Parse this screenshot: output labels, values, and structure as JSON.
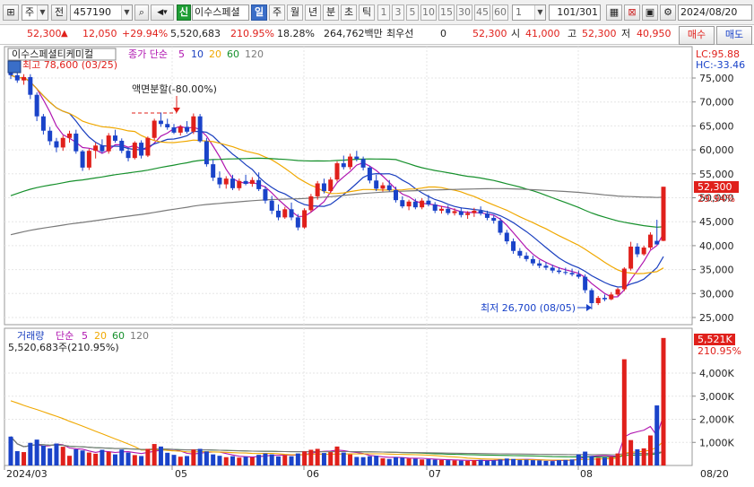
{
  "toolbar": {
    "market_label": "주",
    "prev_label": "전",
    "code_value": "457190",
    "new_badge": "신",
    "stock_name": "이수스페셜",
    "periods": [
      "일",
      "주",
      "월",
      "년",
      "분",
      "초",
      "틱"
    ],
    "active_period": "일",
    "intervals": [
      "1",
      "3",
      "5",
      "10",
      "15",
      "30",
      "45",
      "60"
    ],
    "interval_value": "1",
    "counter": "101",
    "counter_total": "/301",
    "date_value": "2024/08/20"
  },
  "quote": {
    "price": "52,300",
    "change": "12,050",
    "change_pct": "+29.94%",
    "volume": "5,520,683",
    "volume_ratio": "210.95%",
    "turnover": "18.28%",
    "amount": "264,762백만",
    "priority_label": "최우선",
    "priority_value": "0",
    "current": "52,300",
    "open_label": "시",
    "open": "41,000",
    "high_label": "고",
    "high": "52,300",
    "low_label": "저",
    "low": "40,950",
    "buy_label": "매수",
    "sell_label": "매도"
  },
  "price_panel": {
    "title": "이수스페셜티케미컬",
    "ma_label": "종가 단순",
    "ma_periods": [
      "5",
      "10",
      "20",
      "60",
      "120"
    ],
    "ma_colors": [
      "#b015b0",
      "#1a3fbf",
      "#f0a800",
      "#16902c",
      "#7a7a7a"
    ],
    "high_marker": "최고 78,600 (03/25)",
    "low_marker": "최저 26,700 (08/05)",
    "split_marker": "액면분할(-80.00%)",
    "lc": "LC:95.88",
    "hc": "HC:-33.46",
    "last_price_tag": "52,300",
    "last_pct_tag": "29.94%",
    "y_ticks": [
      "75,000",
      "70,000",
      "65,000",
      "60,000",
      "55,000",
      "50,000",
      "45,000",
      "40,000",
      "35,000",
      "30,000",
      "25,000"
    ]
  },
  "volume_panel": {
    "title": "거래량",
    "ma_label": "단순",
    "ma_periods": [
      "5",
      "20",
      "60",
      "120"
    ],
    "volume_text": "5,520,683주(210.95%)",
    "last_vol_tag": "5,521K",
    "last_vol_pct": "210.95%",
    "y_ticks": [
      "4,000K",
      "3,000K",
      "2,000K",
      "1,000K"
    ]
  },
  "x_axis": {
    "labels": [
      "2024/03",
      "05",
      "06",
      "07",
      "08"
    ],
    "right_label": "08/20"
  },
  "chart_data": {
    "type": "candlestick",
    "price_range": [
      24000,
      79000
    ],
    "volume_range": [
      0,
      5600000
    ],
    "y_ticks": [
      75000,
      70000,
      65000,
      60000,
      55000,
      50000,
      45000,
      40000,
      35000,
      30000,
      25000
    ],
    "volume_ticks": [
      4000000,
      3000000,
      2000000,
      1000000
    ],
    "ohlc": [
      [
        76500,
        78600,
        74800,
        75600
      ],
      [
        75600,
        76400,
        74000,
        74500
      ],
      [
        74500,
        75800,
        73600,
        75200
      ],
      [
        75200,
        75800,
        70600,
        71500
      ],
      [
        71500,
        72000,
        66000,
        67000
      ],
      [
        67000,
        67500,
        63200,
        64000
      ],
      [
        64000,
        64800,
        61000,
        61800
      ],
      [
        61800,
        62500,
        59500,
        60500
      ],
      [
        60500,
        63000,
        59800,
        62500
      ],
      [
        62500,
        64000,
        61500,
        63400
      ],
      [
        63400,
        64200,
        59200,
        59700
      ],
      [
        59700,
        60000,
        55600,
        56300
      ],
      [
        56300,
        60200,
        55800,
        59800
      ],
      [
        59800,
        61500,
        58200,
        60900
      ],
      [
        60900,
        62200,
        59300,
        59700
      ],
      [
        59700,
        63500,
        59200,
        63000
      ],
      [
        63000,
        64200,
        61500,
        61900
      ],
      [
        61900,
        62400,
        59300,
        59800
      ],
      [
        59800,
        60500,
        57600,
        58300
      ],
      [
        58300,
        61800,
        58000,
        61500
      ],
      [
        61500,
        62000,
        58200,
        58800
      ],
      [
        58800,
        62800,
        58500,
        62500
      ],
      [
        62500,
        66500,
        62000,
        66100
      ],
      [
        66100,
        67800,
        64800,
        65400
      ],
      [
        65400,
        66500,
        64200,
        64700
      ],
      [
        64700,
        65400,
        63300,
        63600
      ],
      [
        63600,
        65200,
        63000,
        64800
      ],
      [
        64800,
        66000,
        63400,
        63800
      ],
      [
        63800,
        67600,
        63300,
        67000
      ],
      [
        67000,
        67500,
        61500,
        61800
      ],
      [
        61800,
        62500,
        56500,
        57000
      ],
      [
        57000,
        58000,
        53500,
        54200
      ],
      [
        54200,
        55500,
        52000,
        52800
      ],
      [
        52800,
        54500,
        51900,
        54000
      ],
      [
        54000,
        54800,
        51600,
        52000
      ],
      [
        52000,
        54000,
        51500,
        53500
      ],
      [
        53500,
        54800,
        52600,
        52900
      ],
      [
        52900,
        54300,
        52300,
        53700
      ],
      [
        53700,
        55300,
        51400,
        51800
      ],
      [
        51800,
        52400,
        48800,
        49400
      ],
      [
        49400,
        50400,
        46600,
        47300
      ],
      [
        47300,
        48600,
        45300,
        45900
      ],
      [
        45900,
        48100,
        45600,
        47600
      ],
      [
        47600,
        49000,
        45300,
        45900
      ],
      [
        45900,
        46600,
        43200,
        43800
      ],
      [
        43800,
        47800,
        43500,
        47400
      ],
      [
        47400,
        50800,
        47000,
        50300
      ],
      [
        50300,
        53500,
        49600,
        53000
      ],
      [
        53000,
        54000,
        50900,
        51400
      ],
      [
        51400,
        54300,
        51000,
        53800
      ],
      [
        53800,
        57600,
        53400,
        57200
      ],
      [
        57200,
        58800,
        55900,
        56400
      ],
      [
        56400,
        59200,
        55900,
        58600
      ],
      [
        58600,
        59800,
        57600,
        58100
      ],
      [
        58100,
        58600,
        55700,
        56300
      ],
      [
        56300,
        56700,
        53000,
        53600
      ],
      [
        53600,
        54800,
        51400,
        51900
      ],
      [
        51900,
        53200,
        51300,
        52600
      ],
      [
        52600,
        53700,
        51300,
        51600
      ],
      [
        51600,
        52300,
        49000,
        49500
      ],
      [
        49500,
        50300,
        47800,
        48200
      ],
      [
        48200,
        49600,
        47400,
        49200
      ],
      [
        49200,
        49800,
        47600,
        48000
      ],
      [
        48000,
        49900,
        47600,
        49400
      ],
      [
        49400,
        50600,
        48200,
        48600
      ],
      [
        48600,
        49100,
        46800,
        47300
      ],
      [
        47300,
        48300,
        46700,
        47700
      ],
      [
        47700,
        48400,
        46400,
        46800
      ],
      [
        46800,
        47800,
        46300,
        47200
      ],
      [
        47200,
        48000,
        45900,
        46400
      ],
      [
        46400,
        47200,
        45600,
        46800
      ],
      [
        46800,
        47900,
        46000,
        47300
      ],
      [
        47300,
        48200,
        46300,
        46700
      ],
      [
        46700,
        47300,
        45300,
        45800
      ],
      [
        45800,
        46400,
        44600,
        45200
      ],
      [
        45200,
        45800,
        42200,
        42700
      ],
      [
        42700,
        43300,
        40300,
        40900
      ],
      [
        40900,
        41500,
        38300,
        38900
      ],
      [
        38900,
        39500,
        37400,
        37900
      ],
      [
        37900,
        38600,
        36700,
        37200
      ],
      [
        37200,
        37900,
        35800,
        36300
      ],
      [
        36300,
        37000,
        35300,
        35800
      ],
      [
        35800,
        36600,
        34900,
        35400
      ],
      [
        35400,
        36000,
        34300,
        34800
      ],
      [
        34800,
        35500,
        34100,
        34500
      ],
      [
        34500,
        35400,
        33900,
        34300
      ],
      [
        34300,
        35200,
        33600,
        34000
      ],
      [
        34000,
        34800,
        33100,
        33500
      ],
      [
        33500,
        34000,
        30100,
        30700
      ],
      [
        30700,
        31100,
        26700,
        28000
      ],
      [
        28000,
        29500,
        27600,
        29100
      ],
      [
        29100,
        29800,
        28400,
        28800
      ],
      [
        28800,
        30300,
        28600,
        29800
      ],
      [
        29800,
        31200,
        29500,
        30900
      ],
      [
        30900,
        35500,
        30500,
        35200
      ],
      [
        35200,
        40800,
        34800,
        39800
      ],
      [
        39800,
        40500,
        37600,
        38200
      ],
      [
        38200,
        40000,
        37900,
        39600
      ],
      [
        39600,
        42800,
        39200,
        42300
      ],
      [
        41000,
        45400,
        40600,
        40250
      ],
      [
        41000,
        52300,
        40950,
        52300
      ]
    ],
    "volume": [
      1250000,
      620000,
      580000,
      980000,
      1120000,
      860000,
      740000,
      950000,
      810000,
      420000,
      700000,
      650000,
      560000,
      510000,
      680000,
      590000,
      480000,
      690000,
      560000,
      450000,
      410000,
      720000,
      930000,
      820000,
      550000,
      460000,
      380000,
      410000,
      690000,
      720000,
      610000,
      480000,
      420000,
      360000,
      400000,
      340000,
      380000,
      350000,
      460000,
      520000,
      480000,
      390000,
      440000,
      400000,
      520000,
      610000,
      680000,
      720000,
      540000,
      580000,
      820000,
      560000,
      480000,
      370000,
      360000,
      400000,
      420000,
      310000,
      280000,
      360000,
      340000,
      300000,
      290000,
      260000,
      270000,
      250000,
      240000,
      230000,
      220000,
      210000,
      200000,
      230000,
      240000,
      210000,
      220000,
      260000,
      300000,
      280000,
      240000,
      250000,
      230000,
      220000,
      200000,
      190000,
      230000,
      240000,
      260000,
      480000,
      600000,
      410000,
      330000,
      340000,
      380000,
      520000,
      4600000,
      1100000,
      700000,
      740000,
      1300000,
      2600000,
      5520683
    ]
  }
}
